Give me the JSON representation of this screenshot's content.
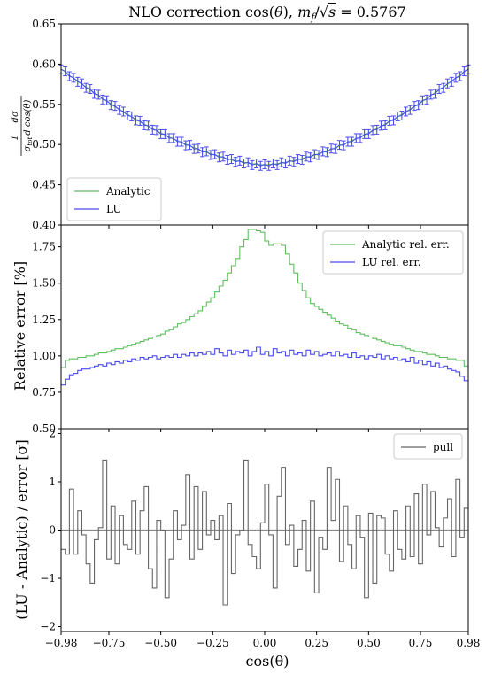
{
  "title": "NLO correction cos(θ), m_f/√s = 0.5767",
  "title_parts": {
    "prefix": "NLO correction cos(",
    "theta": "θ",
    "mid": "), ",
    "m": "m",
    "f": "f",
    "slash": "/",
    "sqrt": "√",
    "s": "s",
    "eq": " = 0.5767"
  },
  "xlabel": "cos(θ)",
  "xticks": [
    "−0.98",
    "−0.75",
    "−0.50",
    "−0.25",
    "0.00",
    "0.25",
    "0.50",
    "0.75",
    "0.98"
  ],
  "panels": {
    "top": {
      "ylabel": {
        "num": "dσ",
        "frac": "1",
        "den_sigma": "σ",
        "den_tot": "tot",
        "den_rest": "d cos(θ)"
      },
      "yticks": [
        "0.40",
        "0.45",
        "0.50",
        "0.55",
        "0.60",
        "0.65"
      ],
      "legend": [
        "Analytic",
        "LU"
      ]
    },
    "middle": {
      "ylabel": "Relative error [%]",
      "yticks": [
        "0.50",
        "0.75",
        "1.00",
        "1.25",
        "1.50",
        "1.75"
      ],
      "legend": [
        "Analytic rel. err.",
        "LU rel. err."
      ]
    },
    "bottom": {
      "ylabel": "(LU - Analytic) / error [σ]",
      "yticks": [
        "−2",
        "−1",
        "0",
        "1",
        "2"
      ],
      "legend": [
        "pull"
      ]
    }
  },
  "colors": {
    "analytic": "#5fbf5f",
    "lu": "#4a4af0",
    "pull": "#666666",
    "zero_line": "#888888"
  },
  "chart_data": [
    {
      "type": "line",
      "title": "NLO correction cos(θ), m_f/√s = 0.5767",
      "xlabel": "",
      "ylabel": "1/σ_tot dσ/d cos(θ)",
      "xlim": [
        -0.98,
        0.98
      ],
      "ylim": [
        0.4,
        0.65
      ],
      "legend_position": "lower-left",
      "x": [
        -0.98,
        -0.96,
        -0.94,
        -0.92,
        -0.9,
        -0.88,
        -0.86,
        -0.84,
        -0.82,
        -0.8,
        -0.78,
        -0.76,
        -0.74,
        -0.72,
        -0.7,
        -0.68,
        -0.66,
        -0.64,
        -0.62,
        -0.6,
        -0.58,
        -0.56,
        -0.54,
        -0.52,
        -0.5,
        -0.48,
        -0.46,
        -0.44,
        -0.42,
        -0.4,
        -0.38,
        -0.36,
        -0.34,
        -0.32,
        -0.3,
        -0.28,
        -0.26,
        -0.24,
        -0.22,
        -0.2,
        -0.18,
        -0.16,
        -0.14,
        -0.12,
        -0.1,
        -0.08,
        -0.06,
        -0.04,
        -0.02,
        0.0,
        0.02,
        0.04,
        0.06,
        0.08,
        0.1,
        0.12,
        0.14,
        0.16,
        0.18,
        0.2,
        0.22,
        0.24,
        0.26,
        0.28,
        0.3,
        0.32,
        0.34,
        0.36,
        0.38,
        0.4,
        0.42,
        0.44,
        0.46,
        0.48,
        0.5,
        0.52,
        0.54,
        0.56,
        0.58,
        0.6,
        0.62,
        0.64,
        0.66,
        0.68,
        0.7,
        0.72,
        0.74,
        0.76,
        0.78,
        0.8,
        0.82,
        0.84,
        0.86,
        0.88,
        0.9,
        0.92,
        0.94,
        0.96,
        0.98
      ],
      "series": [
        {
          "name": "Analytic",
          "values": [
            0.594,
            0.5905,
            0.586,
            0.5825,
            0.579,
            0.575,
            0.5715,
            0.568,
            0.5645,
            0.561,
            0.557,
            0.554,
            0.5505,
            0.547,
            0.544,
            0.5405,
            0.5375,
            0.5345,
            0.5315,
            0.5285,
            0.5255,
            0.5225,
            0.52,
            0.517,
            0.5145,
            0.512,
            0.5095,
            0.507,
            0.505,
            0.5025,
            0.5005,
            0.4985,
            0.496,
            0.494,
            0.492,
            0.4905,
            0.4885,
            0.487,
            0.4855,
            0.484,
            0.4825,
            0.481,
            0.48,
            0.479,
            0.478,
            0.477,
            0.476,
            0.4755,
            0.475,
            0.4745,
            0.475,
            0.4755,
            0.476,
            0.477,
            0.478,
            0.479,
            0.48,
            0.481,
            0.4825,
            0.484,
            0.4855,
            0.487,
            0.4885,
            0.4905,
            0.492,
            0.494,
            0.496,
            0.4985,
            0.5005,
            0.5025,
            0.505,
            0.507,
            0.5095,
            0.512,
            0.5145,
            0.517,
            0.52,
            0.5225,
            0.5255,
            0.5285,
            0.5315,
            0.5345,
            0.5375,
            0.5405,
            0.544,
            0.547,
            0.5505,
            0.554,
            0.557,
            0.561,
            0.5645,
            0.568,
            0.5715,
            0.575,
            0.579,
            0.5825,
            0.586,
            0.5905,
            0.594
          ]
        },
        {
          "name": "LU",
          "values": [
            0.5935,
            0.591,
            0.585,
            0.583,
            0.578,
            0.576,
            0.5705,
            0.569,
            0.563,
            0.562,
            0.556,
            0.555,
            0.549,
            0.548,
            0.543,
            0.541,
            0.536,
            0.535,
            0.53,
            0.5295,
            0.524,
            0.5235,
            0.5185,
            0.518,
            0.513,
            0.513,
            0.508,
            0.508,
            0.5035,
            0.5035,
            0.499,
            0.4995,
            0.4945,
            0.495,
            0.4905,
            0.4915,
            0.487,
            0.488,
            0.484,
            0.485,
            0.481,
            0.482,
            0.4785,
            0.48,
            0.4765,
            0.478,
            0.4745,
            0.4765,
            0.4735,
            0.4755,
            0.4735,
            0.4765,
            0.4745,
            0.478,
            0.4765,
            0.48,
            0.4785,
            0.482,
            0.481,
            0.485,
            0.484,
            0.488,
            0.487,
            0.4915,
            0.4905,
            0.495,
            0.4945,
            0.4995,
            0.499,
            0.5035,
            0.5035,
            0.508,
            0.508,
            0.513,
            0.513,
            0.518,
            0.5185,
            0.5235,
            0.524,
            0.5295,
            0.53,
            0.535,
            0.536,
            0.541,
            0.543,
            0.548,
            0.549,
            0.555,
            0.556,
            0.562,
            0.563,
            0.569,
            0.5705,
            0.576,
            0.578,
            0.583,
            0.585,
            0.591,
            0.5935
          ],
          "errors": 0.0055
        }
      ]
    },
    {
      "type": "line",
      "xlabel": "",
      "ylabel": "Relative error [%]",
      "xlim": [
        -0.98,
        0.98
      ],
      "ylim": [
        0.5,
        1.9
      ],
      "legend_position": "top-right",
      "bin_edges": {
        "start": -0.98,
        "stop": 0.98,
        "count": 98
      },
      "series": [
        {
          "name": "Analytic rel. err.",
          "values": [
            0.92,
            0.97,
            0.98,
            0.98,
            0.99,
            0.99,
            1.0,
            1.0,
            1.01,
            1.02,
            1.02,
            1.03,
            1.04,
            1.05,
            1.05,
            1.06,
            1.07,
            1.08,
            1.09,
            1.1,
            1.11,
            1.12,
            1.13,
            1.14,
            1.15,
            1.17,
            1.18,
            1.2,
            1.22,
            1.23,
            1.25,
            1.27,
            1.29,
            1.31,
            1.34,
            1.37,
            1.4,
            1.44,
            1.48,
            1.52,
            1.57,
            1.62,
            1.67,
            1.75,
            1.8,
            1.87,
            1.87,
            1.86,
            1.85,
            1.79,
            1.76,
            1.77,
            1.77,
            1.76,
            1.7,
            1.63,
            1.57,
            1.5,
            1.45,
            1.4,
            1.36,
            1.34,
            1.32,
            1.3,
            1.28,
            1.26,
            1.24,
            1.22,
            1.21,
            1.19,
            1.18,
            1.16,
            1.15,
            1.14,
            1.13,
            1.12,
            1.11,
            1.1,
            1.09,
            1.08,
            1.07,
            1.07,
            1.06,
            1.05,
            1.04,
            1.03,
            1.03,
            1.02,
            1.01,
            1.01,
            1.0,
            0.99,
            0.99,
            0.98,
            0.98,
            0.97,
            0.97,
            0.93
          ]
        },
        {
          "name": "LU rel. err.",
          "values": [
            0.8,
            0.84,
            0.87,
            0.88,
            0.9,
            0.91,
            0.91,
            0.92,
            0.93,
            0.94,
            0.93,
            0.95,
            0.94,
            0.96,
            0.95,
            0.97,
            0.96,
            0.98,
            0.97,
            0.99,
            0.98,
            0.99,
            1.0,
            0.98,
            0.99,
            1.0,
            0.99,
            1.01,
            0.99,
            1.01,
            1.0,
            1.02,
            1.0,
            1.02,
            1.01,
            1.03,
            1.01,
            1.05,
            1.02,
            1.0,
            1.04,
            1.01,
            1.03,
            1.02,
            1.04,
            1.0,
            1.03,
            1.06,
            1.01,
            1.03,
            1.0,
            1.05,
            1.02,
            1.03,
            1.0,
            1.04,
            1.01,
            1.02,
            1.0,
            1.04,
            1.01,
            1.03,
            1.0,
            1.01,
            1.02,
            1.0,
            1.03,
            1.0,
            1.01,
            0.99,
            1.02,
            0.99,
            1.0,
            0.98,
            1.0,
            0.99,
            1.01,
            0.98,
            1.0,
            0.98,
            0.99,
            0.97,
            0.98,
            0.96,
            0.99,
            0.95,
            0.97,
            0.94,
            0.96,
            0.93,
            0.95,
            0.92,
            0.93,
            0.91,
            0.9,
            0.89,
            0.86,
            0.83
          ]
        }
      ]
    },
    {
      "type": "line",
      "xlabel": "cos(θ)",
      "ylabel": "(LU - Analytic) / error [σ]",
      "xlim": [
        -0.98,
        0.98
      ],
      "ylim": [
        -2.1,
        2.1
      ],
      "legend_position": "top-right",
      "bin_edges": {
        "start": -0.98,
        "stop": 0.98,
        "count": 98
      },
      "series": [
        {
          "name": "pull",
          "values": [
            -0.4,
            -0.5,
            0.85,
            -0.5,
            0.4,
            -0.1,
            -0.7,
            -1.1,
            -0.2,
            0.05,
            1.45,
            -0.6,
            0.5,
            -0.7,
            0.3,
            -0.3,
            -0.4,
            0.6,
            -0.5,
            0.4,
            0.9,
            -0.8,
            -1.2,
            0.2,
            0.0,
            -1.4,
            -0.6,
            0.4,
            -0.2,
            0.1,
            1.15,
            -0.6,
            0.9,
            -0.4,
            0.8,
            -0.1,
            0.2,
            -0.2,
            0.3,
            -1.55,
            0.55,
            -0.9,
            -0.1,
            0.0,
            1.45,
            -0.3,
            -0.55,
            -0.8,
            0.15,
            0.95,
            -0.1,
            -1.2,
            0.7,
            1.3,
            -0.3,
            0.1,
            -0.75,
            -0.4,
            0.2,
            -0.85,
            0.6,
            -1.3,
            -0.15,
            -0.4,
            1.3,
            0.2,
            1.05,
            -0.65,
            0.5,
            -0.3,
            -0.8,
            0.3,
            -0.15,
            -1.4,
            0.35,
            -1.1,
            0.3,
            0.25,
            -0.5,
            -0.85,
            0.4,
            -0.4,
            -0.6,
            0.5,
            -0.55,
            0.75,
            -0.7,
            0.95,
            -0.1,
            0.8,
            0.05,
            -0.35,
            0.25,
            0.65,
            -0.55,
            1.05,
            -0.15,
            0.45
          ]
        }
      ]
    }
  ]
}
